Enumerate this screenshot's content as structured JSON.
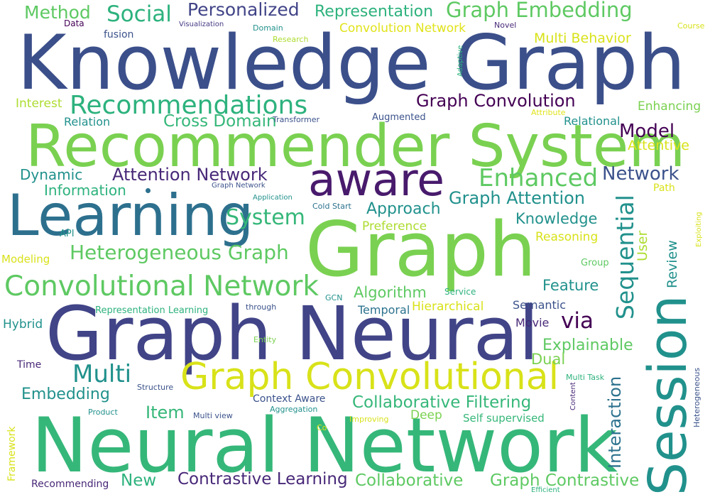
{
  "palette": {
    "navy": "#3b4f8a",
    "indigo": "#443983",
    "purple": "#481a6c",
    "teal_blue": "#2d708e",
    "teal": "#21918c",
    "sea_green": "#1fa187",
    "green": "#35b779",
    "lime_green": "#6ece58",
    "yellow_green": "#b5de2b",
    "yellow": "#e0e31a",
    "light_green": "#8fd744"
  },
  "words": [
    {
      "text": "Knowledge Graph",
      "color": "#3b4f8a"
    },
    {
      "text": "Recommender System",
      "color": "#7ad151"
    },
    {
      "text": "Graph",
      "color": "#7ad151"
    },
    {
      "text": "Graph Neural",
      "color": "#414487"
    },
    {
      "text": "Neural Network",
      "color": "#35b779"
    },
    {
      "text": "Learning",
      "color": "#2d708e"
    },
    {
      "text": "aware",
      "color": "#481a6c"
    },
    {
      "text": "Session",
      "color": "#21918c"
    },
    {
      "text": "Graph Convolutional",
      "color": "#d8e219"
    },
    {
      "text": "Convolutional Network",
      "color": "#5ec962"
    },
    {
      "text": "Recommendations",
      "color": "#2db27d"
    },
    {
      "text": "Heterogeneous Graph",
      "color": "#5ec962"
    },
    {
      "text": "Graph Embedding",
      "color": "#5ec962"
    },
    {
      "text": "Enhanced",
      "color": "#5ec962"
    },
    {
      "text": "Sequential",
      "color": "#21918c"
    },
    {
      "text": "Multi",
      "color": "#21918c"
    },
    {
      "text": "Social",
      "color": "#2db27d"
    },
    {
      "text": "Method",
      "color": "#5ec962"
    },
    {
      "text": "Personalized",
      "color": "#414487"
    },
    {
      "text": "Representation",
      "color": "#2db27d"
    },
    {
      "text": "Graph Convolution",
      "color": "#440154"
    },
    {
      "text": "Attention Network",
      "color": "#482878"
    },
    {
      "text": "Graph Attention",
      "color": "#21918c"
    },
    {
      "text": "System",
      "color": "#35b779"
    },
    {
      "text": "Model",
      "color": "#440154"
    },
    {
      "text": "Network",
      "color": "#3b528b"
    },
    {
      "text": "Cross Domain",
      "color": "#35b779"
    },
    {
      "text": "Approach",
      "color": "#21918c"
    },
    {
      "text": "Knowledge",
      "color": "#21918c"
    },
    {
      "text": "Collaborative Filtering",
      "color": "#35b779"
    },
    {
      "text": "Contrastive Learning",
      "color": "#482878"
    },
    {
      "text": "Collaborative",
      "color": "#5ec962"
    },
    {
      "text": "Graph Contrastive",
      "color": "#5ec962"
    },
    {
      "text": "Interaction",
      "color": "#2c728e"
    },
    {
      "text": "Explainable",
      "color": "#5ec962"
    },
    {
      "text": "Embedding",
      "color": "#21918c"
    },
    {
      "text": "Item",
      "color": "#35b779"
    },
    {
      "text": "New",
      "color": "#2db27d"
    },
    {
      "text": "via",
      "color": "#440154"
    },
    {
      "text": "Algorithm",
      "color": "#5ec962"
    },
    {
      "text": "Feature",
      "color": "#21918c"
    },
    {
      "text": "Dual",
      "color": "#7ad151"
    },
    {
      "text": "Dynamic",
      "color": "#21918c"
    },
    {
      "text": "Information",
      "color": "#2db27d"
    },
    {
      "text": "Multi Behavior",
      "color": "#d8e219"
    },
    {
      "text": "Convolution Network",
      "color": "#e0e31a"
    },
    {
      "text": "Attentive",
      "color": "#d8e219"
    },
    {
      "text": "Enhancing",
      "color": "#7ad151"
    },
    {
      "text": "Relational",
      "color": "#21918c"
    },
    {
      "text": "Interest",
      "color": "#addc30"
    },
    {
      "text": "Relation",
      "color": "#21918c"
    },
    {
      "text": "Preference",
      "color": "#addc30"
    },
    {
      "text": "Reasoning",
      "color": "#d8e219"
    },
    {
      "text": "Hierarchical",
      "color": "#d8e219"
    },
    {
      "text": "Temporal",
      "color": "#2c728e"
    },
    {
      "text": "Semantic",
      "color": "#3b528b"
    },
    {
      "text": "Movie",
      "color": "#482878"
    },
    {
      "text": "Hybrid",
      "color": "#21918c"
    },
    {
      "text": "Deep",
      "color": "#7ad151"
    },
    {
      "text": "Self supervised",
      "color": "#35b779"
    },
    {
      "text": "Context Aware",
      "color": "#3b528b"
    },
    {
      "text": "Recommending",
      "color": "#482878"
    },
    {
      "text": "Modeling",
      "color": "#d8e219"
    },
    {
      "text": "Review",
      "color": "#21918c"
    },
    {
      "text": "User",
      "color": "#addc30"
    },
    {
      "text": "Representation Learning",
      "color": "#2db27d"
    },
    {
      "text": "Time",
      "color": "#482878"
    },
    {
      "text": "Framework",
      "color": "#d8e219"
    },
    {
      "text": "Path",
      "color": "#d8e219"
    },
    {
      "text": "Group",
      "color": "#5ec962"
    },
    {
      "text": "Service",
      "color": "#2db27d"
    },
    {
      "text": "Data",
      "color": "#440154"
    },
    {
      "text": "fusion",
      "color": "#3b528b"
    },
    {
      "text": "Visualization",
      "color": "#443983"
    },
    {
      "text": "Domain",
      "color": "#21918c"
    },
    {
      "text": "Research",
      "color": "#addc30"
    },
    {
      "text": "Novel",
      "color": "#482878"
    },
    {
      "text": "Course",
      "color": "#d8e219"
    },
    {
      "text": "Adaptive",
      "color": "#2db27d"
    },
    {
      "text": "Augmented",
      "color": "#3b528b"
    },
    {
      "text": "Transformer",
      "color": "#3b528b"
    },
    {
      "text": "Attribute",
      "color": "#e0e31a"
    },
    {
      "text": "Graph Network",
      "color": "#3b528b"
    },
    {
      "text": "Application",
      "color": "#21918c"
    },
    {
      "text": "Cold Start",
      "color": "#2c728e"
    },
    {
      "text": "API",
      "color": "#21918c"
    },
    {
      "text": "GCN",
      "color": "#21918c"
    },
    {
      "text": "through",
      "color": "#3b528b"
    },
    {
      "text": "Entity",
      "color": "#7ad151"
    },
    {
      "text": "Structure",
      "color": "#3b528b"
    },
    {
      "text": "Product",
      "color": "#21918c"
    },
    {
      "text": "Multi view",
      "color": "#3b528b"
    },
    {
      "text": "Aggregation",
      "color": "#21918c"
    },
    {
      "text": "Improving",
      "color": "#d8e219"
    },
    {
      "text": "Co",
      "color": "#e0e31a"
    },
    {
      "text": "Multi Task",
      "color": "#2db27d"
    },
    {
      "text": "Content",
      "color": "#482878"
    },
    {
      "text": "Heterogeneous",
      "color": "#3b528b"
    },
    {
      "text": "Exploiting",
      "color": "#d8e219"
    },
    {
      "text": "Efficient",
      "color": "#2db27d"
    }
  ]
}
